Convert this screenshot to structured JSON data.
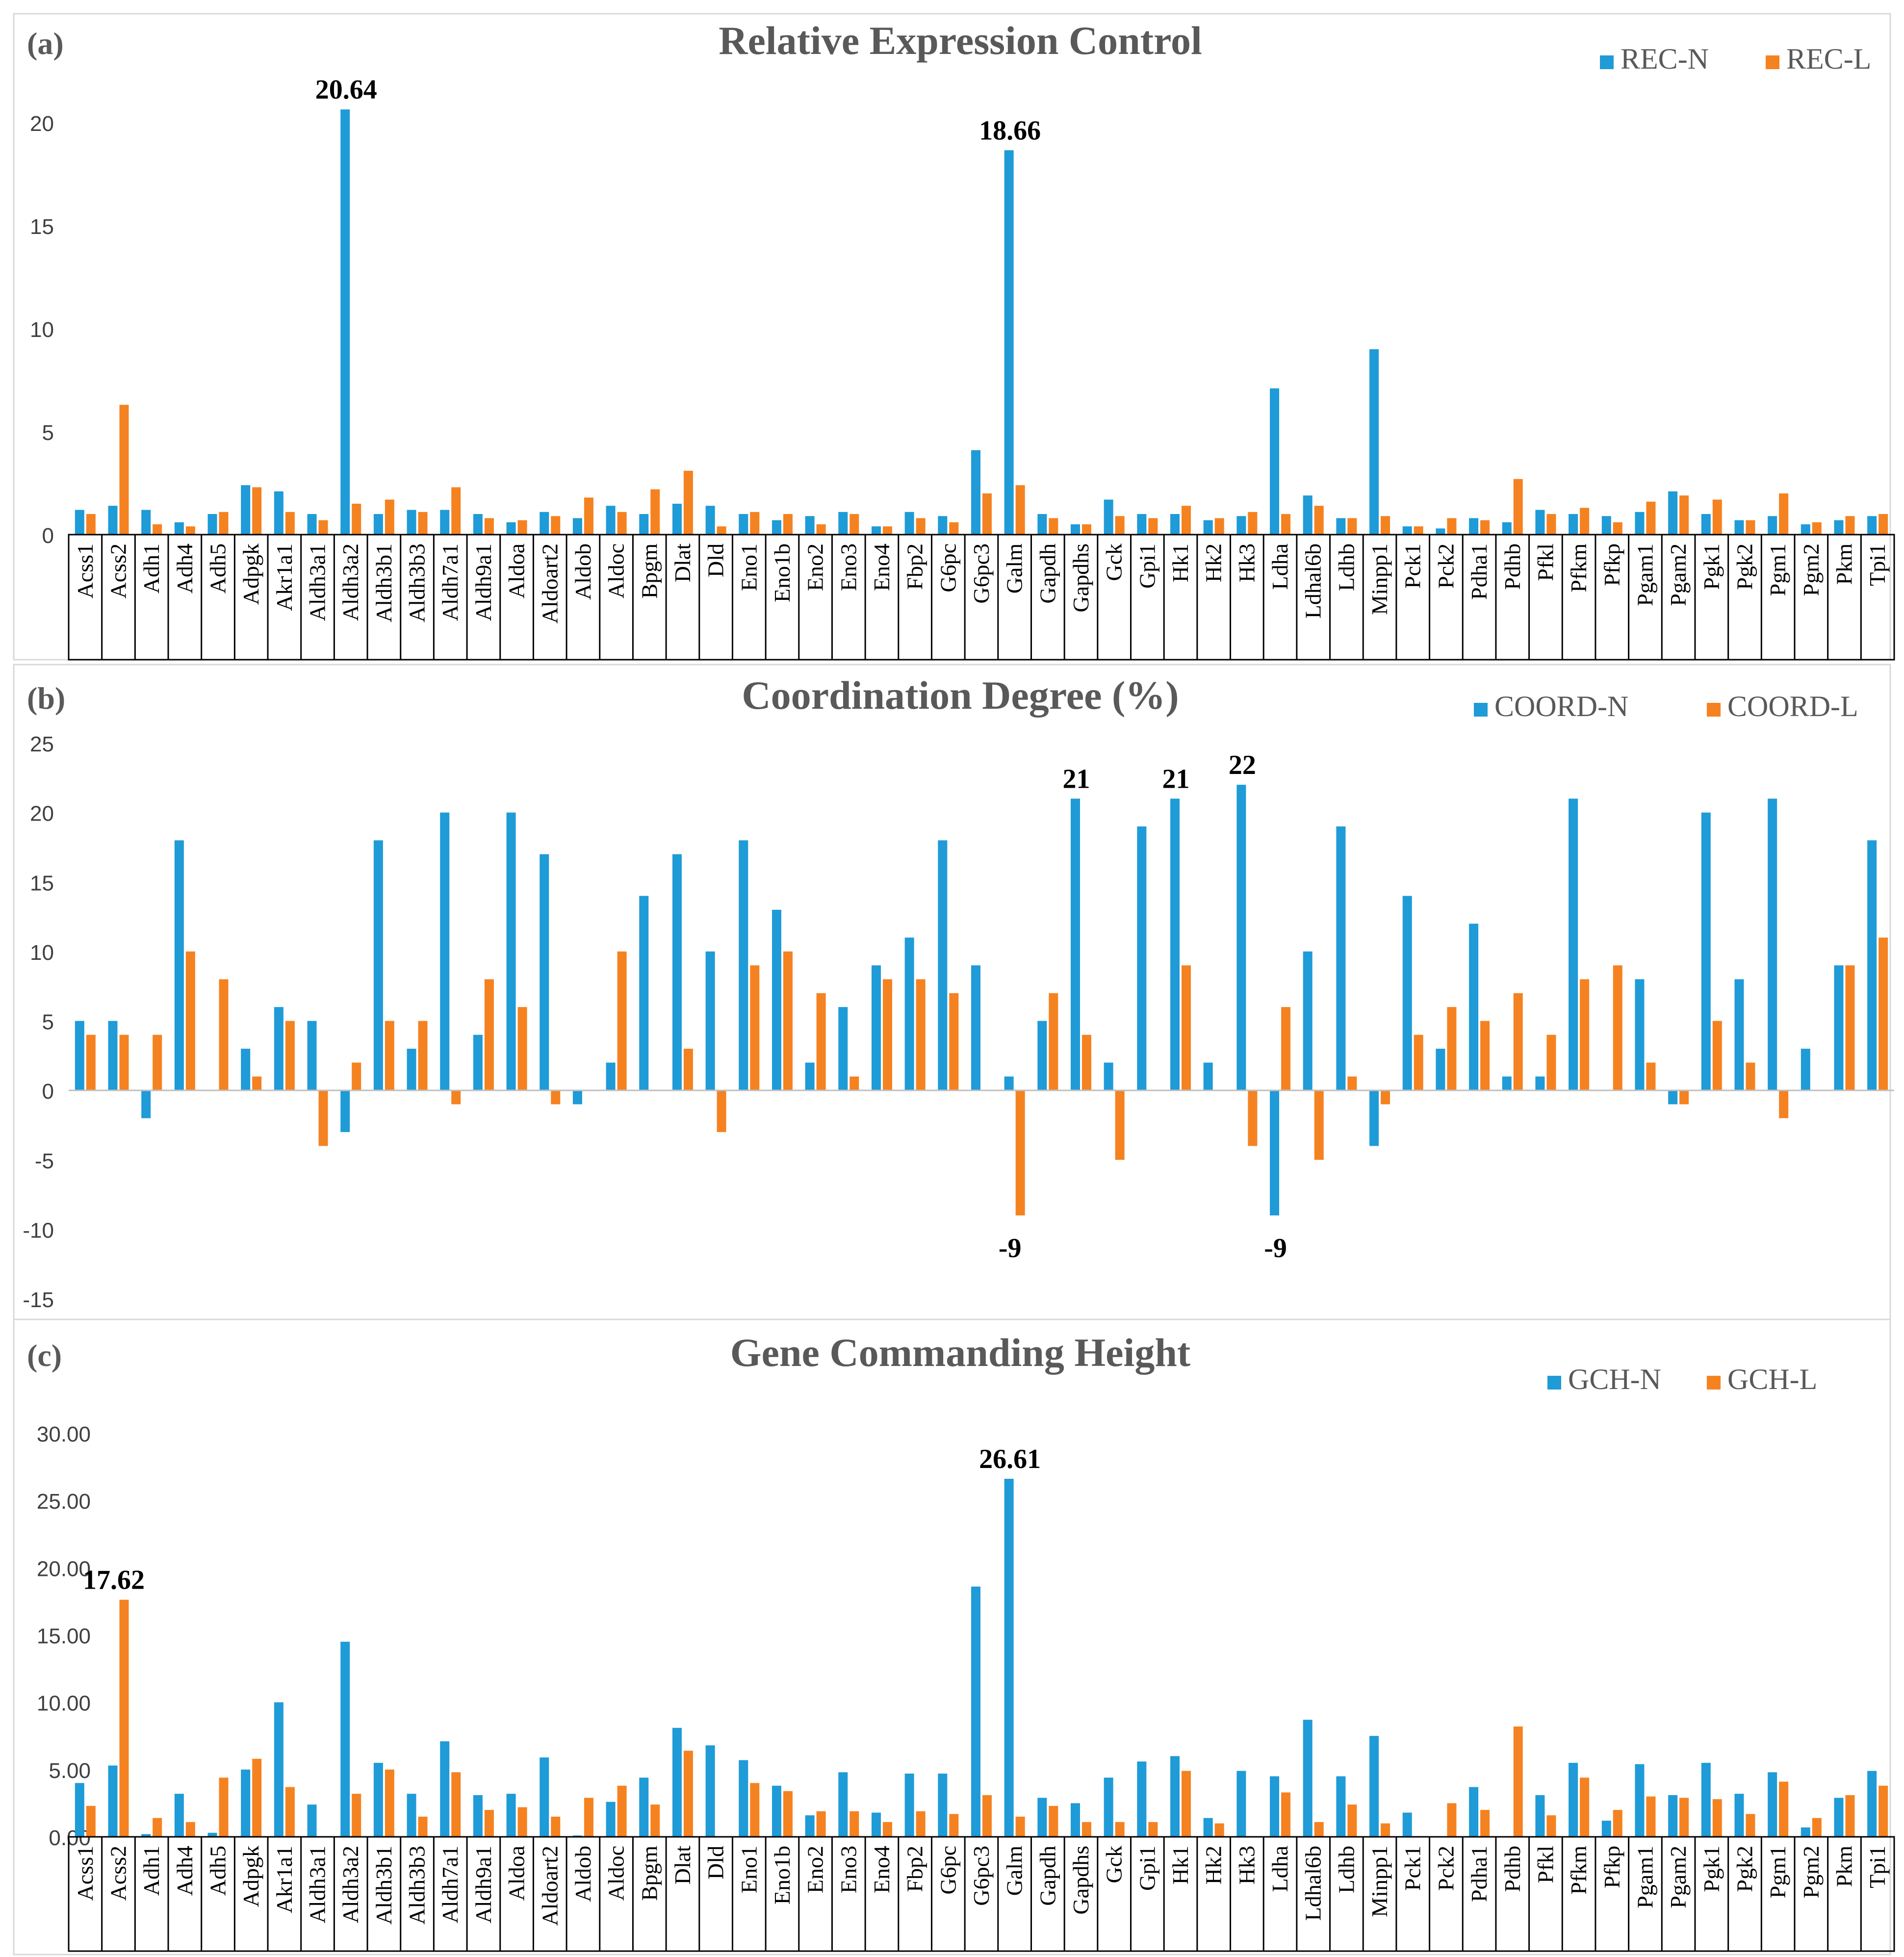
{
  "panel_labels": [
    "(a)",
    "(b)",
    "(c)"
  ],
  "genes": [
    "Acss1",
    "Acss2",
    "Adh1",
    "Adh4",
    "Adh5",
    "Adpgk",
    "Akr1a1",
    "Aldh3a1",
    "Aldh3a2",
    "Aldh3b1",
    "Aldh3b3",
    "Aldh7a1",
    "Aldh9a1",
    "Aldoa",
    "Aldoart2",
    "Aldob",
    "Aldoc",
    "Bpgm",
    "Dlat",
    "Dld",
    "Eno1",
    "Eno1b",
    "Eno2",
    "Eno3",
    "Eno4",
    "Fbp2",
    "G6pc",
    "G6pc3",
    "Galm",
    "Gapdh",
    "Gapdhs",
    "Gck",
    "Gpi1",
    "Hk1",
    "Hk2",
    "Hk3",
    "Ldha",
    "Ldhal6b",
    "Ldhb",
    "Minpp1",
    "Pck1",
    "Pck2",
    "Pdha1",
    "Pdhb",
    "Pfkl",
    "Pfkm",
    "Pfkp",
    "Pgam1",
    "Pgam2",
    "Pgk1",
    "Pgk2",
    "Pgm1",
    "Pgm2",
    "Pkm",
    "Tpi1"
  ],
  "colors": {
    "series_n": "#1f9bd7",
    "series_l": "#f58220",
    "title": "#595959",
    "axis_text": "#404040",
    "annotation": "#000000"
  },
  "chart_data": [
    {
      "type": "bar",
      "title": "Relative Expression Control",
      "categories_ref": "genes",
      "ylim": [
        0,
        20
      ],
      "yticks": [
        "0",
        "5",
        "10",
        "15",
        "20"
      ],
      "ytick_values": [
        0,
        5,
        10,
        15,
        20
      ],
      "grid": false,
      "legend_position": "top-right",
      "series": [
        {
          "name": "REC-N",
          "values": [
            1.2,
            1.4,
            1.2,
            0.6,
            1.0,
            2.4,
            2.1,
            1.0,
            20.64,
            1.0,
            1.2,
            1.2,
            1.0,
            0.6,
            1.1,
            0.8,
            1.4,
            1.0,
            1.5,
            1.4,
            1.0,
            0.7,
            0.9,
            1.1,
            0.4,
            1.1,
            0.9,
            4.1,
            18.66,
            1.0,
            0.5,
            1.7,
            1.0,
            1.0,
            0.7,
            0.9,
            7.1,
            1.9,
            0.8,
            9.0,
            0.4,
            0.3,
            0.8,
            0.6,
            1.2,
            1.0,
            0.9,
            1.1,
            2.1,
            1.0,
            0.7,
            0.9,
            0.5,
            0.7,
            0.9
          ]
        },
        {
          "name": "REC-L",
          "values": [
            1.0,
            6.3,
            0.5,
            0.4,
            1.1,
            2.3,
            1.1,
            0.7,
            1.5,
            1.7,
            1.1,
            2.3,
            0.8,
            0.7,
            0.9,
            1.8,
            1.1,
            2.2,
            3.1,
            0.4,
            1.1,
            1.0,
            0.5,
            1.0,
            0.4,
            0.8,
            0.6,
            2.0,
            2.4,
            0.8,
            0.5,
            0.9,
            0.8,
            1.4,
            0.8,
            1.1,
            1.0,
            1.4,
            0.8,
            0.9,
            0.4,
            0.8,
            0.7,
            2.7,
            1.0,
            1.3,
            0.6,
            1.6,
            1.9,
            1.7,
            0.7,
            2.0,
            0.6,
            0.9,
            1.0
          ]
        }
      ],
      "annotations": [
        {
          "text": "20.64",
          "category": "Aldh3a2",
          "value": 20.64
        },
        {
          "text": "18.66",
          "category": "Galm",
          "value": 18.66
        }
      ]
    },
    {
      "type": "bar",
      "title": "Coordination Degree (%)",
      "categories_ref": "genes",
      "ylim": [
        -15,
        25
      ],
      "yticks": [
        "-15",
        "-10",
        "-5",
        "0",
        "5",
        "10",
        "15",
        "20",
        "25"
      ],
      "ytick_values": [
        -15,
        -10,
        -5,
        0,
        5,
        10,
        15,
        20,
        25
      ],
      "grid": false,
      "legend_position": "top-right",
      "series": [
        {
          "name": "COORD-N",
          "values": [
            5,
            5,
            -2,
            18,
            0,
            3,
            6,
            5,
            -3,
            18,
            3,
            20,
            4,
            20,
            17,
            -1,
            2,
            14,
            17,
            10,
            18,
            13,
            2,
            6,
            9,
            11,
            18,
            9,
            1,
            5,
            21,
            2,
            19,
            21,
            2,
            22,
            -9,
            10,
            19,
            -4,
            14,
            3,
            12,
            1,
            1,
            21,
            0,
            8,
            -1,
            20,
            8,
            21,
            3,
            9,
            18
          ]
        },
        {
          "name": "COORD-L",
          "values": [
            4,
            4,
            4,
            10,
            8,
            1,
            5,
            -4,
            2,
            5,
            5,
            -1,
            8,
            6,
            -1,
            0,
            10,
            0,
            3,
            -3,
            9,
            10,
            7,
            1,
            8,
            8,
            7,
            0,
            -9,
            7,
            4,
            -5,
            0,
            9,
            0,
            -4,
            6,
            -5,
            1,
            -1,
            4,
            6,
            5,
            7,
            4,
            8,
            9,
            2,
            -1,
            5,
            2,
            -2,
            0,
            9,
            11
          ]
        }
      ],
      "annotations": [
        {
          "text": "21",
          "category": "Gapdhs",
          "value": 21
        },
        {
          "text": "21",
          "category": "Hk1",
          "value": 21
        },
        {
          "text": "22",
          "category": "Hk3",
          "value": 22
        },
        {
          "text": "-9",
          "category": "Galm",
          "value": -9
        },
        {
          "text": "-9",
          "category": "Ldha",
          "value": -9
        }
      ]
    },
    {
      "type": "bar",
      "title": "Gene Commanding Height",
      "categories_ref": "genes",
      "ylim": [
        0,
        30
      ],
      "yticks": [
        "0.00",
        "5.00",
        "10.00",
        "15.00",
        "20.00",
        "25.00",
        "30.00"
      ],
      "ytick_values": [
        0,
        5,
        10,
        15,
        20,
        25,
        30
      ],
      "grid": false,
      "legend_position": "top-right",
      "series": [
        {
          "name": "GCH-N",
          "values": [
            4.0,
            5.3,
            0.2,
            3.2,
            0.3,
            5.0,
            10.0,
            2.4,
            14.5,
            5.5,
            3.2,
            7.1,
            3.1,
            3.2,
            5.9,
            0.1,
            2.6,
            4.4,
            8.1,
            6.8,
            5.7,
            3.8,
            1.6,
            4.8,
            1.8,
            4.7,
            4.7,
            18.6,
            26.61,
            2.9,
            2.5,
            4.4,
            5.6,
            6.0,
            1.4,
            4.9,
            4.5,
            8.7,
            4.5,
            7.5,
            1.8,
            0.0,
            3.7,
            0.0,
            3.1,
            5.5,
            1.2,
            5.4,
            3.1,
            5.5,
            3.2,
            4.8,
            0.7,
            2.9,
            4.9
          ]
        },
        {
          "name": "GCH-L",
          "values": [
            2.3,
            17.62,
            1.4,
            1.1,
            4.4,
            5.8,
            3.7,
            0.0,
            3.2,
            5.0,
            1.5,
            4.8,
            2.0,
            2.2,
            1.5,
            2.9,
            3.8,
            2.4,
            6.4,
            0.0,
            4.0,
            3.4,
            1.9,
            1.9,
            1.1,
            1.9,
            1.7,
            3.1,
            1.5,
            2.3,
            1.1,
            1.1,
            1.1,
            4.9,
            1.0,
            0.0,
            3.3,
            1.1,
            2.4,
            1.0,
            0.0,
            2.5,
            2.0,
            8.2,
            1.6,
            4.4,
            2.0,
            3.0,
            2.9,
            2.8,
            1.7,
            4.1,
            1.4,
            3.1,
            3.8
          ]
        }
      ],
      "annotations": [
        {
          "text": "17.62",
          "category": "Acss2",
          "value": 17.62
        },
        {
          "text": "26.61",
          "category": "Galm",
          "value": 26.61
        }
      ]
    }
  ]
}
